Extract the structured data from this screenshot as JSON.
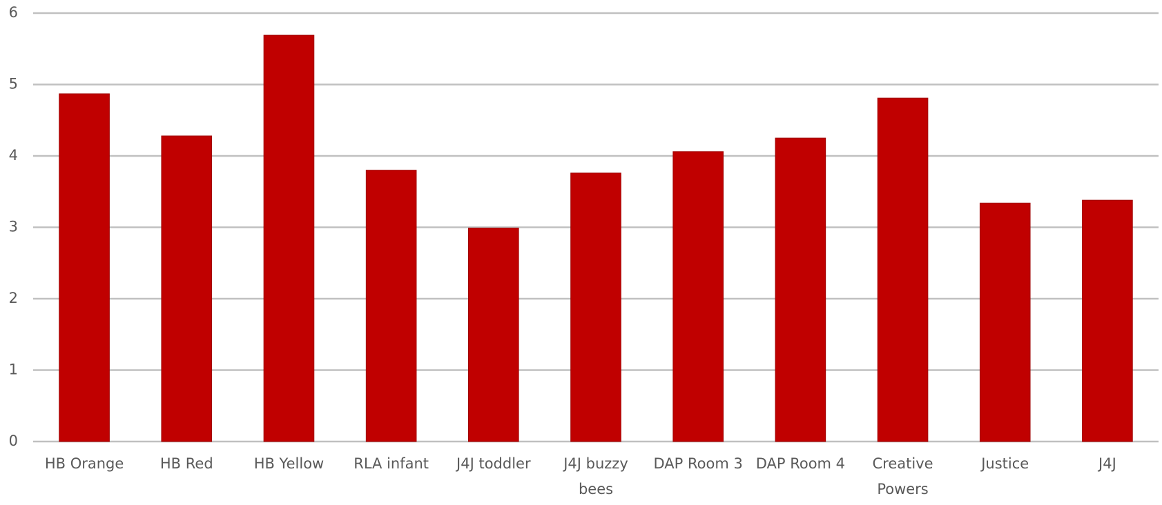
{
  "chart_data": {
    "type": "bar",
    "categories": [
      "HB Orange",
      "HB Red",
      "HB Yellow",
      "RLA infant",
      "J4J toddler",
      "J4J buzzy bees",
      "DAP Room 3",
      "DAP Room 4",
      "Creative Powers",
      "Justice",
      "J4J"
    ],
    "values": [
      4.87,
      4.28,
      5.69,
      3.8,
      2.99,
      3.76,
      4.06,
      4.25,
      4.81,
      3.34,
      3.38
    ],
    "color": "#c00000",
    "ylim": [
      0,
      6
    ],
    "yticks": [
      0,
      1,
      2,
      3,
      4,
      5,
      6
    ],
    "grid": true
  }
}
